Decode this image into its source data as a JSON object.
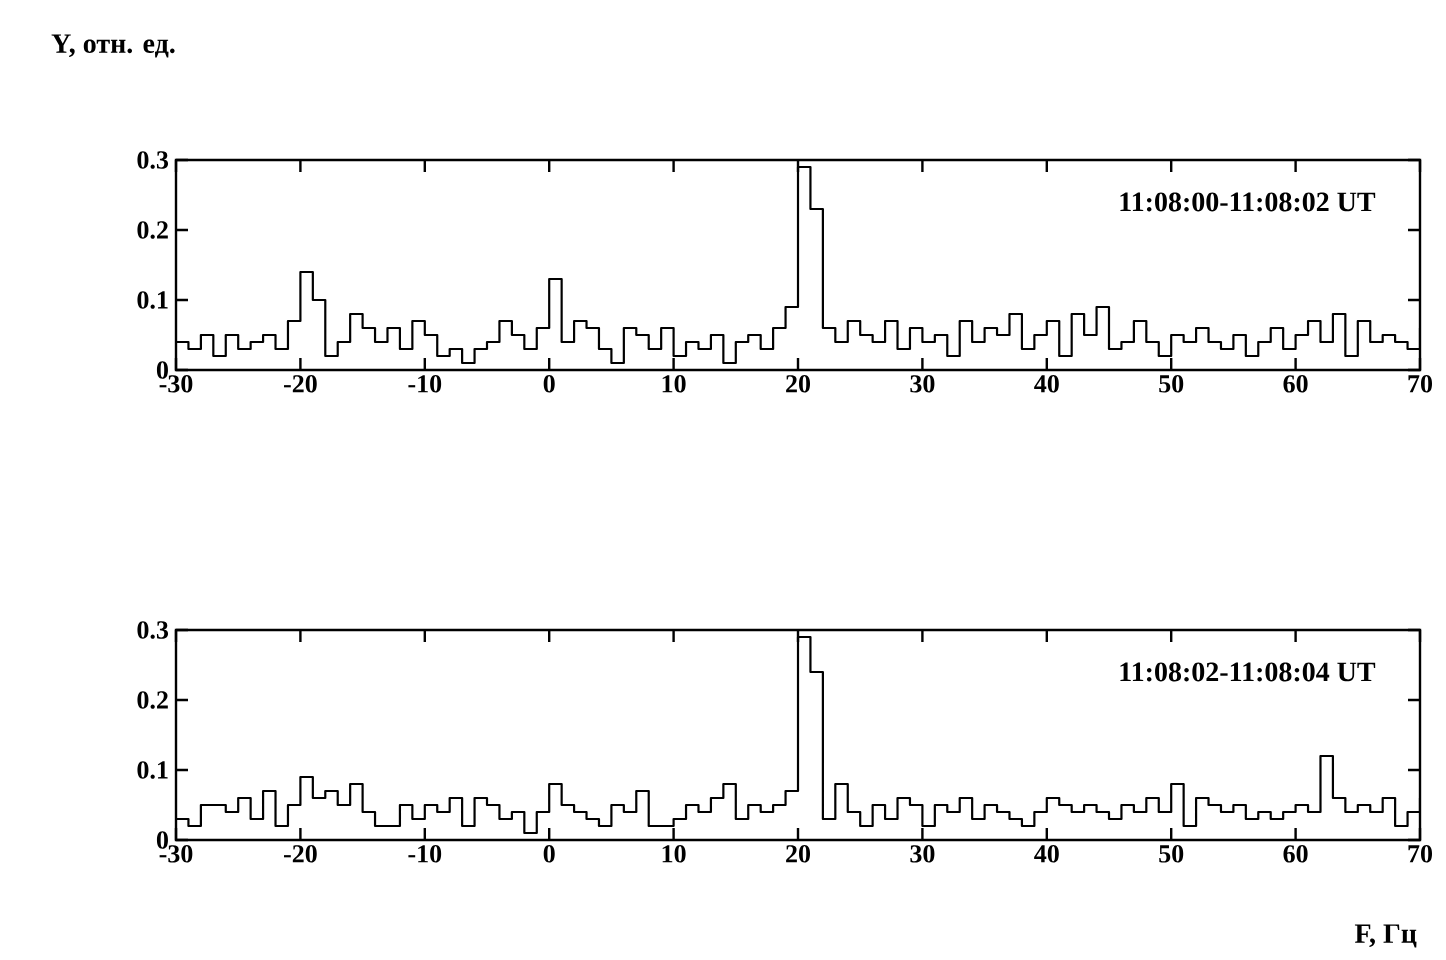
{
  "chart_data": [
    {
      "type": "step",
      "ylabel": "Y, отн. ед.",
      "annotations": [
        "11:08:00-11:08:02 UT"
      ],
      "xlim": [
        -30,
        70
      ],
      "ylim": [
        0,
        0.3
      ],
      "xticks": [
        -30,
        -20,
        -10,
        0,
        10,
        20,
        30,
        40,
        50,
        60,
        70
      ],
      "yticks": [
        0,
        0.1,
        0.2,
        0.3
      ],
      "color": "#000000",
      "x": [
        -30,
        -29,
        -28,
        -27,
        -26,
        -25,
        -24,
        -23,
        -22,
        -21,
        -20,
        -19,
        -18,
        -17,
        -16,
        -15,
        -14,
        -13,
        -12,
        -11,
        -10,
        -9,
        -8,
        -7,
        -6,
        -5,
        -4,
        -3,
        -2,
        -1,
        0,
        1,
        2,
        3,
        4,
        5,
        6,
        7,
        8,
        9,
        10,
        11,
        12,
        13,
        14,
        15,
        16,
        17,
        18,
        19,
        20,
        21,
        22,
        23,
        24,
        25,
        26,
        27,
        28,
        29,
        30,
        31,
        32,
        33,
        34,
        35,
        36,
        37,
        38,
        39,
        40,
        41,
        42,
        43,
        44,
        45,
        46,
        47,
        48,
        49,
        50,
        51,
        52,
        53,
        54,
        55,
        56,
        57,
        58,
        59,
        60,
        61,
        62,
        63,
        64,
        65,
        66,
        67,
        68,
        69,
        70
      ],
      "values": [
        0.04,
        0.03,
        0.05,
        0.02,
        0.05,
        0.03,
        0.04,
        0.05,
        0.03,
        0.07,
        0.14,
        0.1,
        0.02,
        0.04,
        0.08,
        0.06,
        0.04,
        0.06,
        0.03,
        0.07,
        0.05,
        0.02,
        0.03,
        0.01,
        0.03,
        0.04,
        0.07,
        0.05,
        0.03,
        0.06,
        0.13,
        0.04,
        0.07,
        0.06,
        0.03,
        0.01,
        0.06,
        0.05,
        0.03,
        0.06,
        0.02,
        0.04,
        0.03,
        0.05,
        0.01,
        0.04,
        0.05,
        0.03,
        0.06,
        0.09,
        0.29,
        0.23,
        0.06,
        0.04,
        0.07,
        0.05,
        0.04,
        0.07,
        0.03,
        0.06,
        0.04,
        0.05,
        0.02,
        0.07,
        0.04,
        0.06,
        0.05,
        0.08,
        0.03,
        0.05,
        0.07,
        0.02,
        0.08,
        0.05,
        0.09,
        0.03,
        0.04,
        0.07,
        0.04,
        0.02,
        0.05,
        0.04,
        0.06,
        0.04,
        0.03,
        0.05,
        0.02,
        0.04,
        0.06,
        0.03,
        0.05,
        0.07,
        0.04,
        0.08,
        0.02,
        0.07,
        0.04,
        0.05,
        0.04,
        0.03,
        0.06
      ]
    },
    {
      "type": "step",
      "xlabel": "F, Гц",
      "annotations": [
        "11:08:02-11:08:04 UT"
      ],
      "xlim": [
        -30,
        70
      ],
      "ylim": [
        0,
        0.3
      ],
      "xticks": [
        -30,
        -20,
        -10,
        0,
        10,
        20,
        30,
        40,
        50,
        60,
        70
      ],
      "yticks": [
        0,
        0.1,
        0.2,
        0.3
      ],
      "color": "#000000",
      "x": [
        -30,
        -29,
        -28,
        -27,
        -26,
        -25,
        -24,
        -23,
        -22,
        -21,
        -20,
        -19,
        -18,
        -17,
        -16,
        -15,
        -14,
        -13,
        -12,
        -11,
        -10,
        -9,
        -8,
        -7,
        -6,
        -5,
        -4,
        -3,
        -2,
        -1,
        0,
        1,
        2,
        3,
        4,
        5,
        6,
        7,
        8,
        9,
        10,
        11,
        12,
        13,
        14,
        15,
        16,
        17,
        18,
        19,
        20,
        21,
        22,
        23,
        24,
        25,
        26,
        27,
        28,
        29,
        30,
        31,
        32,
        33,
        34,
        35,
        36,
        37,
        38,
        39,
        40,
        41,
        42,
        43,
        44,
        45,
        46,
        47,
        48,
        49,
        50,
        51,
        52,
        53,
        54,
        55,
        56,
        57,
        58,
        59,
        60,
        61,
        62,
        63,
        64,
        65,
        66,
        67,
        68,
        69,
        70
      ],
      "values": [
        0.03,
        0.02,
        0.05,
        0.05,
        0.04,
        0.06,
        0.03,
        0.07,
        0.02,
        0.05,
        0.09,
        0.06,
        0.07,
        0.05,
        0.08,
        0.04,
        0.02,
        0.02,
        0.05,
        0.03,
        0.05,
        0.04,
        0.06,
        0.02,
        0.06,
        0.05,
        0.03,
        0.04,
        0.01,
        0.04,
        0.08,
        0.05,
        0.04,
        0.03,
        0.02,
        0.05,
        0.04,
        0.07,
        0.02,
        0.02,
        0.03,
        0.05,
        0.04,
        0.06,
        0.08,
        0.03,
        0.05,
        0.04,
        0.05,
        0.07,
        0.29,
        0.24,
        0.03,
        0.08,
        0.04,
        0.02,
        0.05,
        0.03,
        0.06,
        0.05,
        0.02,
        0.05,
        0.04,
        0.06,
        0.03,
        0.05,
        0.04,
        0.03,
        0.02,
        0.04,
        0.06,
        0.05,
        0.04,
        0.05,
        0.04,
        0.03,
        0.05,
        0.04,
        0.06,
        0.04,
        0.08,
        0.02,
        0.06,
        0.05,
        0.04,
        0.05,
        0.03,
        0.04,
        0.03,
        0.04,
        0.05,
        0.04,
        0.12,
        0.06,
        0.04,
        0.05,
        0.04,
        0.06,
        0.02,
        0.04,
        0.06
      ]
    }
  ]
}
